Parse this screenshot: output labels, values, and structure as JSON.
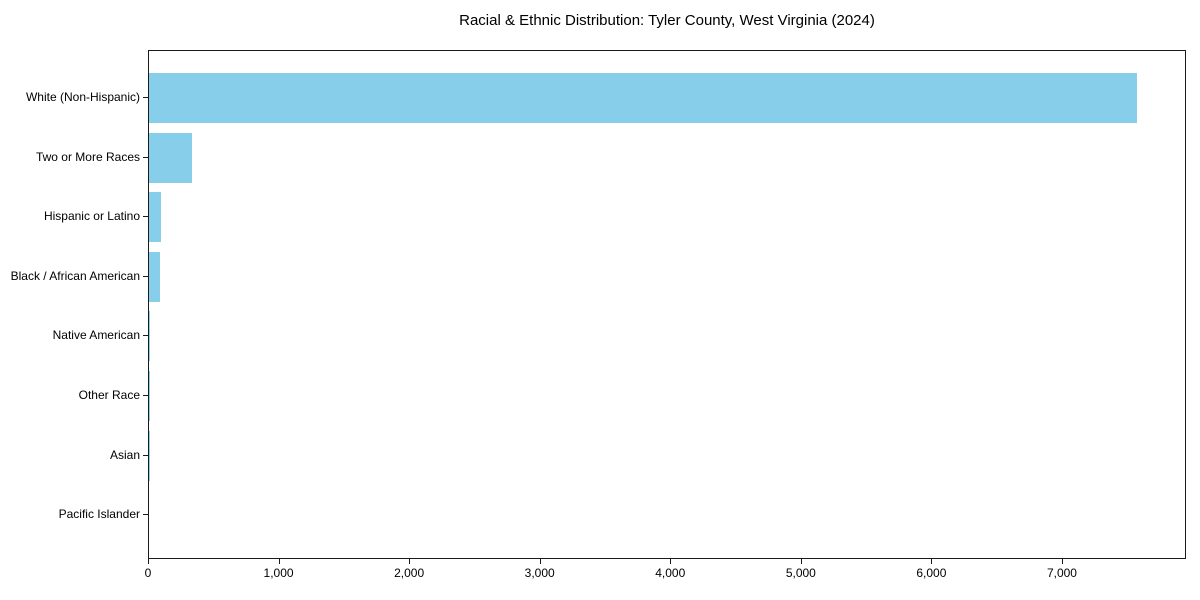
{
  "figure": {
    "title": "Racial & Ethnic Distribution: Tyler County, West Virginia (2024)"
  },
  "chart_data": {
    "type": "bar",
    "orientation": "horizontal",
    "title": "Racial & Ethnic Distribution: Tyler County, West Virginia (2024)",
    "categories": [
      "White (Non-Hispanic)",
      "Two or More Races",
      "Hispanic or Latino",
      "Black / African American",
      "Native American",
      "Other Race",
      "Asian",
      "Pacific Islander"
    ],
    "values": [
      7570,
      332,
      93,
      85,
      4,
      2,
      1,
      0
    ],
    "xlabel": "",
    "ylabel": "",
    "xlim": [
      0,
      7950
    ],
    "xticks": [
      0,
      1000,
      2000,
      3000,
      4000,
      5000,
      6000,
      7000
    ],
    "xtick_labels": [
      "0",
      "1,000",
      "2,000",
      "3,000",
      "4,000",
      "5,000",
      "6,000",
      "7,000"
    ],
    "bar_color": "#87ceeb",
    "text_color": "#000000",
    "spine_color": "#1a1a1a",
    "background": "#ffffff",
    "grid": false,
    "legend_position": "none"
  }
}
